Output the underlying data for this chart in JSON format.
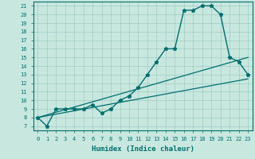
{
  "xlabel": "Humidex (Indice chaleur)",
  "xlim": [
    -0.5,
    23.5
  ],
  "ylim": [
    6.5,
    21.5
  ],
  "xticks": [
    0,
    1,
    2,
    3,
    4,
    5,
    6,
    7,
    8,
    9,
    10,
    11,
    12,
    13,
    14,
    15,
    16,
    17,
    18,
    19,
    20,
    21,
    22,
    23
  ],
  "yticks": [
    7,
    8,
    9,
    10,
    11,
    12,
    13,
    14,
    15,
    16,
    17,
    18,
    19,
    20,
    21
  ],
  "bg_color": "#c8e8df",
  "line_color": "#006e6e",
  "grid_color": "#9dccc4",
  "series": [
    {
      "x": [
        0,
        1,
        2,
        3,
        4,
        5,
        6,
        7,
        8,
        9,
        10,
        11,
        12,
        13,
        14,
        15,
        16,
        17,
        18,
        19,
        20,
        21,
        22,
        23
      ],
      "y": [
        8,
        7,
        9,
        9,
        9,
        9,
        9.5,
        8.5,
        9,
        10,
        10.5,
        11.5,
        13,
        14.5,
        16,
        16,
        20.5,
        20.5,
        21,
        21,
        20,
        15,
        14.5,
        13
      ],
      "marker": "*",
      "markersize": 3.5,
      "linewidth": 1.0
    },
    {
      "x": [
        0,
        23
      ],
      "y": [
        8,
        15
      ],
      "marker": null,
      "linewidth": 0.9
    },
    {
      "x": [
        0,
        23
      ],
      "y": [
        8,
        12.5
      ],
      "marker": null,
      "linewidth": 0.9
    }
  ]
}
